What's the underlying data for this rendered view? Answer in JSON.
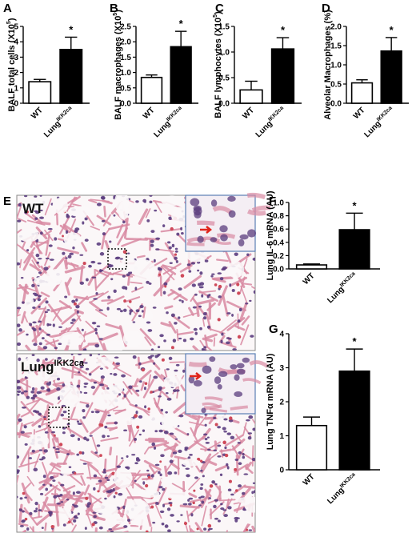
{
  "figure": {
    "panel_E": {
      "letter": "E",
      "top_label": {
        "main": "WT",
        "sup": ""
      },
      "bottom_label": {
        "main": "Lung",
        "sup": "IKK2ca"
      },
      "tissue_colors": {
        "background": "#fbf7f8",
        "pink": "#d98aa3",
        "nuclei": "#5b3c7e",
        "rbc": "#cf4a5a",
        "arrow": "#e0241b",
        "inset_border": "#5a7fb5"
      }
    }
  },
  "chart_data": [
    {
      "id": "A",
      "letter": "A",
      "type": "bar",
      "ylabel_main": "BALF total cells (X10",
      "ylabel_sup": "5",
      "ylabel_end": ")",
      "ylim": [
        0,
        5
      ],
      "yticks": [
        "0",
        "1",
        "2",
        "3",
        "4",
        "5"
      ],
      "ytick_values": [
        0,
        1,
        2,
        3,
        4,
        5
      ],
      "categories": [
        {
          "main": "WT",
          "sup": ""
        },
        {
          "main": "Lung",
          "sup": "IKK2ca"
        }
      ],
      "values": [
        1.4,
        3.5
      ],
      "errors": [
        0.15,
        0.8
      ],
      "colors": [
        "#ffffff",
        "#000000"
      ],
      "significance": "*"
    },
    {
      "id": "B",
      "letter": "B",
      "type": "bar",
      "ylabel_main": "BALF macrophages (X10",
      "ylabel_sup": "5",
      "ylabel_end": ")",
      "ylim": [
        0,
        2.5
      ],
      "yticks": [
        "0.0",
        "0.5",
        "1.0",
        "1.5",
        "2.0",
        "2.5"
      ],
      "ytick_values": [
        0,
        0.5,
        1.0,
        1.5,
        2.0,
        2.5
      ],
      "categories": [
        {
          "main": "WT",
          "sup": ""
        },
        {
          "main": "Lung",
          "sup": "IKK2ca"
        }
      ],
      "values": [
        0.84,
        1.84
      ],
      "errors": [
        0.08,
        0.5
      ],
      "colors": [
        "#ffffff",
        "#000000"
      ],
      "significance": "*"
    },
    {
      "id": "C",
      "letter": "C",
      "type": "bar",
      "ylabel_main": "BALF lymphocytes (X10",
      "ylabel_sup": "5",
      "ylabel_end": ")",
      "ylim": [
        0,
        1.5
      ],
      "yticks": [
        "0.0",
        "0.5",
        "1.0",
        "1.5"
      ],
      "ytick_values": [
        0,
        0.5,
        1.0,
        1.5
      ],
      "categories": [
        {
          "main": "WT",
          "sup": ""
        },
        {
          "main": "Lung",
          "sup": "IKK2ca"
        }
      ],
      "values": [
        0.26,
        1.06
      ],
      "errors": [
        0.17,
        0.22
      ],
      "colors": [
        "#ffffff",
        "#000000"
      ],
      "significance": "*"
    },
    {
      "id": "D",
      "letter": "D",
      "type": "bar",
      "ylabel_main": "Alveolar Macrophages (%)",
      "ylabel_sup": "",
      "ylabel_end": "",
      "ylim": [
        0,
        2.0
      ],
      "yticks": [
        "0.0",
        "0.5",
        "1.0",
        "1.5",
        "2.0"
      ],
      "ytick_values": [
        0,
        0.5,
        1.0,
        1.5,
        2.0
      ],
      "categories": [
        {
          "main": "WT",
          "sup": ""
        },
        {
          "main": "Lung",
          "sup": "IKK2ca"
        }
      ],
      "values": [
        0.53,
        1.36
      ],
      "errors": [
        0.08,
        0.35
      ],
      "colors": [
        "#ffffff",
        "#000000"
      ],
      "significance": "*"
    },
    {
      "id": "F",
      "letter": "F",
      "type": "bar",
      "ylabel_main": "Lung IL-6 mRNA (AU)",
      "ylabel_sup": "",
      "ylabel_end": "",
      "ylim": [
        0,
        1.0
      ],
      "yticks": [
        "0.0",
        "0.2",
        "0.4",
        "0.6",
        "0.8",
        "1.0"
      ],
      "ytick_values": [
        0,
        0.2,
        0.4,
        0.6,
        0.8,
        1.0
      ],
      "categories": [
        {
          "main": "WT",
          "sup": ""
        },
        {
          "main": "Lung",
          "sup": "IKK2ca"
        }
      ],
      "values": [
        0.06,
        0.59
      ],
      "errors": [
        0.015,
        0.25
      ],
      "colors": [
        "#ffffff",
        "#000000"
      ],
      "significance": "*"
    },
    {
      "id": "G",
      "letter": "G",
      "type": "bar",
      "ylabel_main": "Lung TNFα mRNA (AU)",
      "ylabel_sup": "",
      "ylabel_end": "",
      "ylim": [
        0,
        4
      ],
      "yticks": [
        "0",
        "1",
        "2",
        "3",
        "4"
      ],
      "ytick_values": [
        0,
        1,
        2,
        3,
        4
      ],
      "categories": [
        {
          "main": "WT",
          "sup": ""
        },
        {
          "main": "Lung",
          "sup": "IKK2ca"
        }
      ],
      "values": [
        1.3,
        2.9
      ],
      "errors": [
        0.25,
        0.65
      ],
      "colors": [
        "#ffffff",
        "#000000"
      ],
      "significance": "*"
    }
  ]
}
